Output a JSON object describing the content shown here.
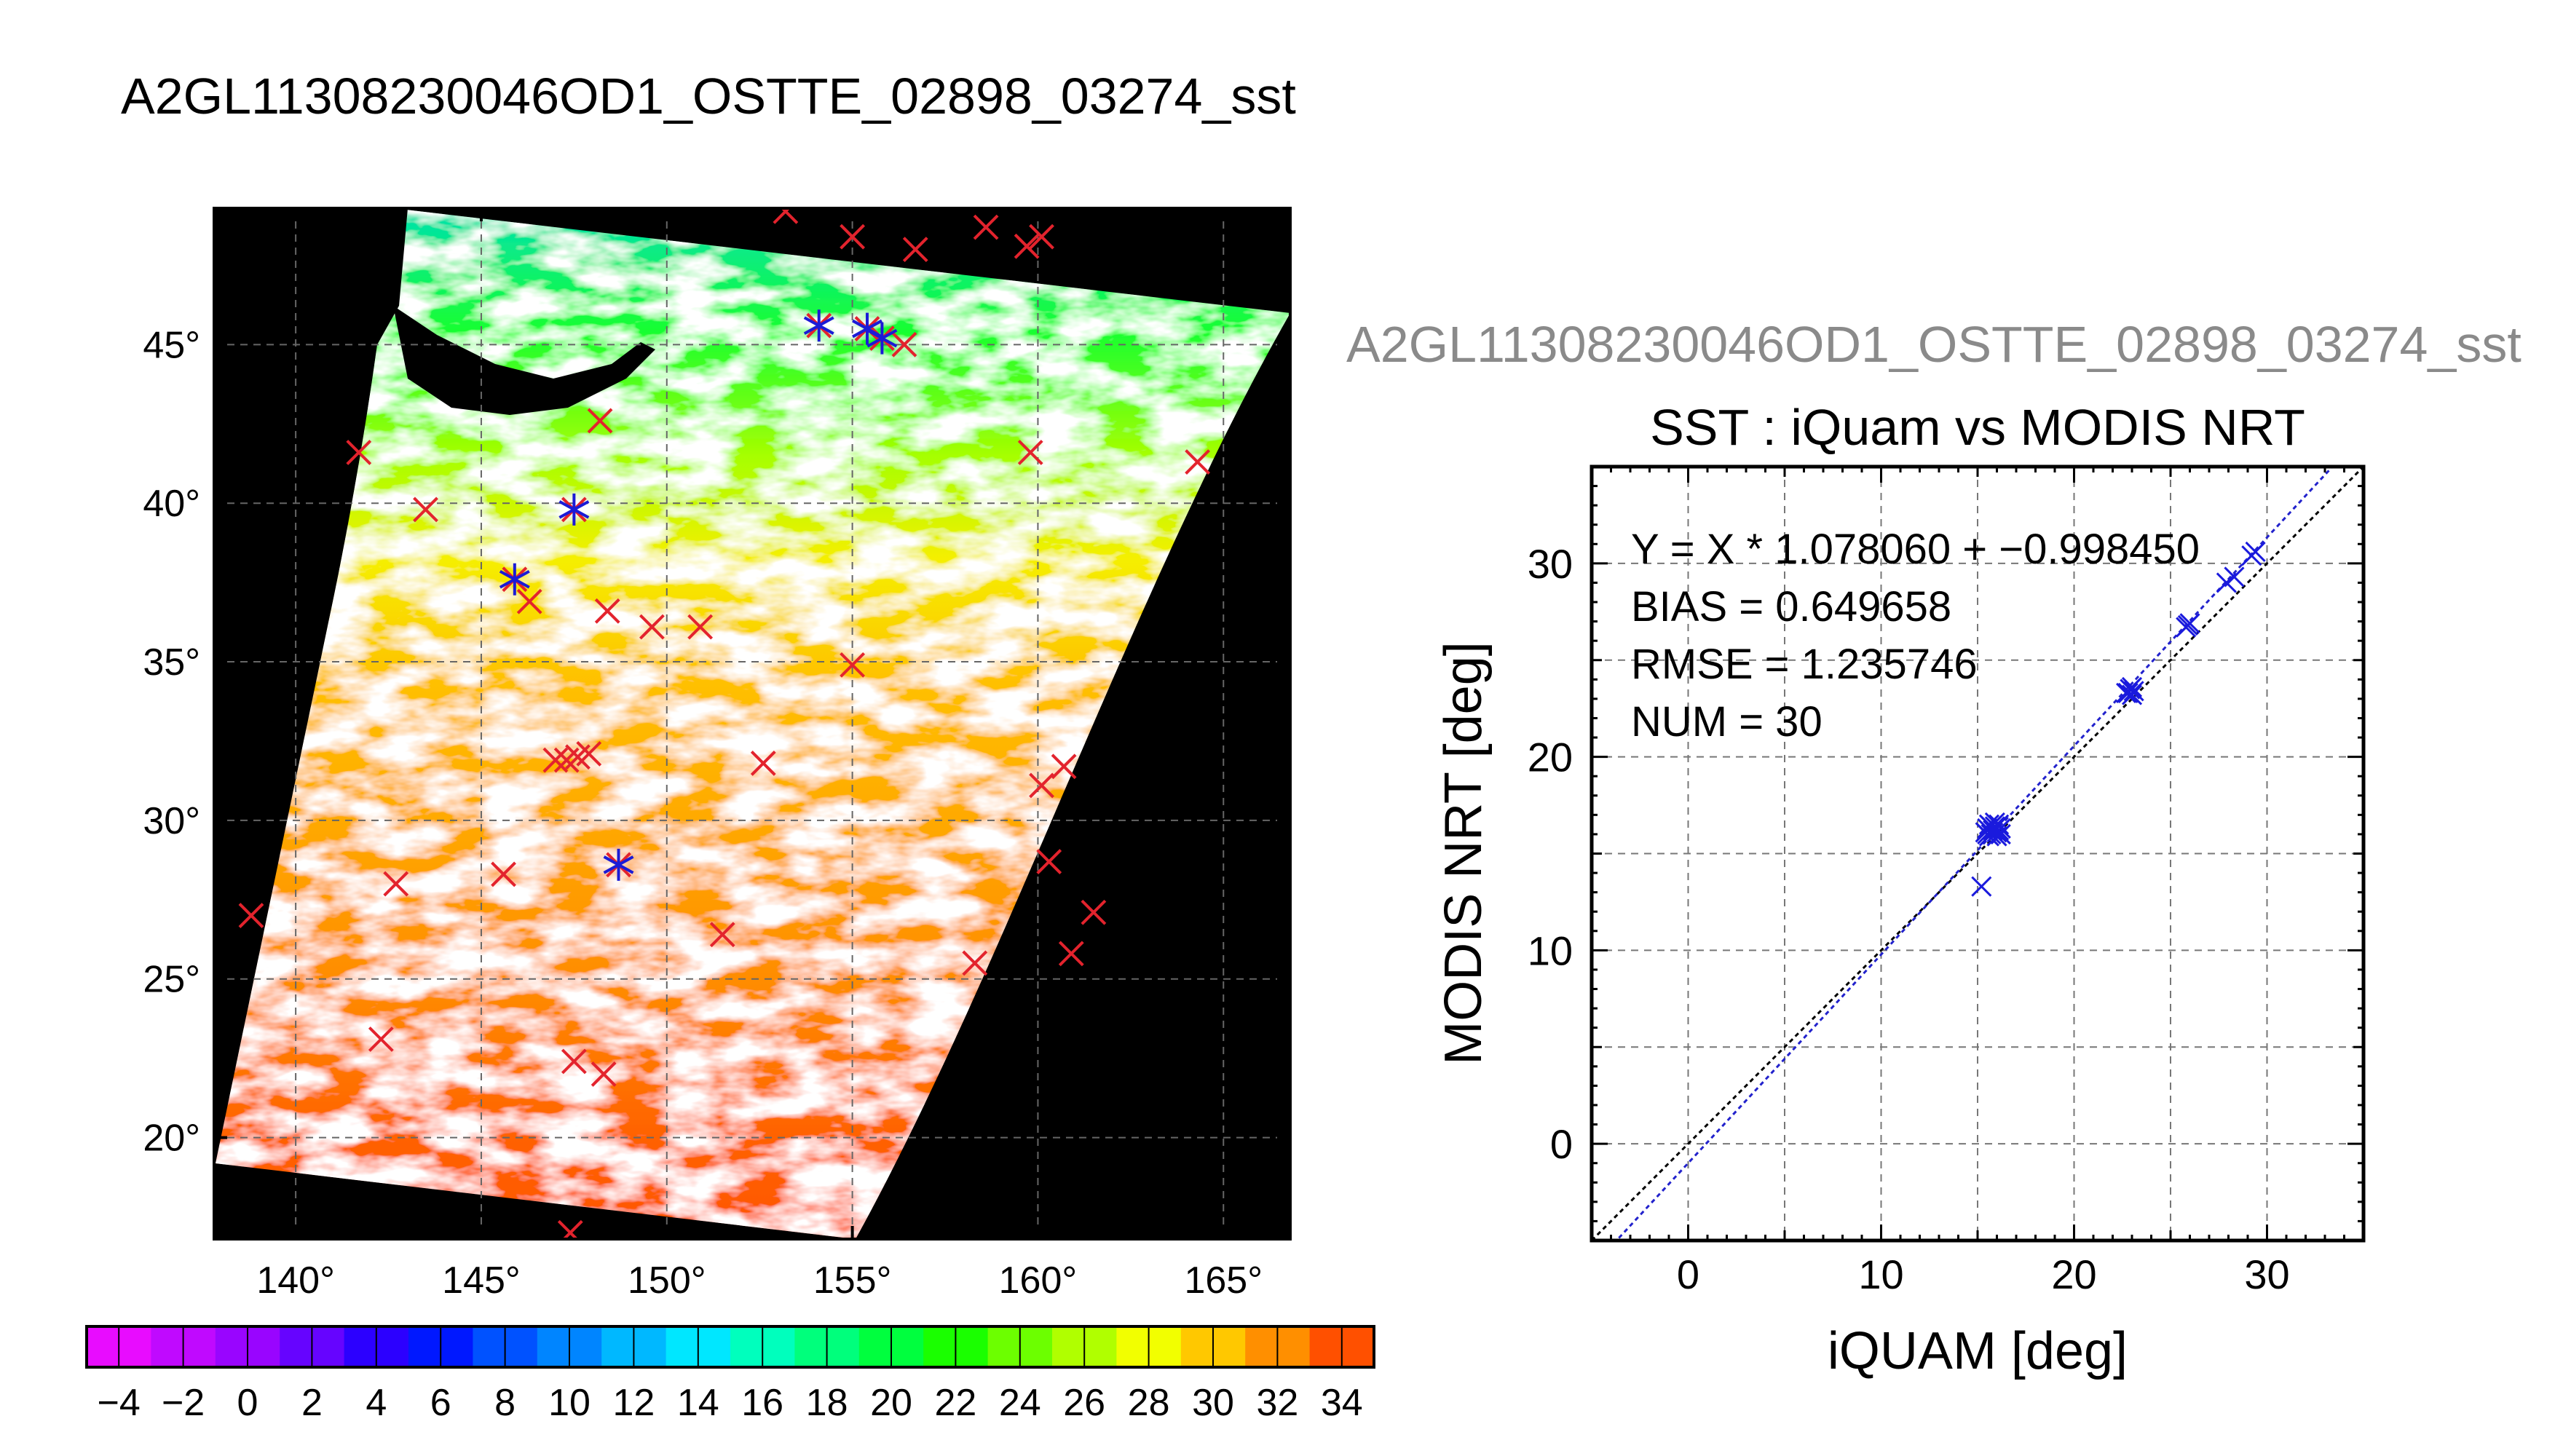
{
  "page_title": "A2GL11308230046OD1_OSTTE_02898_03274_sst",
  "chart_data": [
    {
      "type": "map",
      "lon_ticks": [
        "140°",
        "145°",
        "150°",
        "155°",
        "160°",
        "165°"
      ],
      "lon_values": [
        140,
        145,
        150,
        155,
        160,
        165
      ],
      "lat_ticks": [
        "45°",
        "40°",
        "35°",
        "30°",
        "25°",
        "20°"
      ],
      "lat_values": [
        45,
        40,
        35,
        30,
        25,
        20
      ],
      "xlim": [
        137.8,
        166.8
      ],
      "ylim": [
        16.8,
        49.3
      ],
      "grid": true,
      "marker_colors": {
        "sst_match": "#e3232d",
        "used_match": "#1b1bd6"
      },
      "sst_markers": [
        [
          153.2,
          49.2
        ],
        [
          155.0,
          48.4
        ],
        [
          156.7,
          48.0
        ],
        [
          158.6,
          48.7
        ],
        [
          159.7,
          48.1
        ],
        [
          160.1,
          48.4
        ],
        [
          154.1,
          45.6
        ],
        [
          155.4,
          45.5
        ],
        [
          155.8,
          45.2
        ],
        [
          156.4,
          45.0
        ],
        [
          141.7,
          41.6
        ],
        [
          143.5,
          39.8
        ],
        [
          148.2,
          42.6
        ],
        [
          145.9,
          37.6
        ],
        [
          146.3,
          36.9
        ],
        [
          147.5,
          39.8
        ],
        [
          148.4,
          36.6
        ],
        [
          149.6,
          36.1
        ],
        [
          150.9,
          36.1
        ],
        [
          155.0,
          34.9
        ],
        [
          159.8,
          41.6
        ],
        [
          164.3,
          41.3
        ],
        [
          147.0,
          31.9
        ],
        [
          147.3,
          31.9
        ],
        [
          147.6,
          32.0
        ],
        [
          147.9,
          32.1
        ],
        [
          152.6,
          31.8
        ],
        [
          148.7,
          28.6
        ],
        [
          142.7,
          28.0
        ],
        [
          145.6,
          28.3
        ],
        [
          151.5,
          26.4
        ],
        [
          138.8,
          27.0
        ],
        [
          142.3,
          23.1
        ],
        [
          147.5,
          22.4
        ],
        [
          148.3,
          22.0
        ],
        [
          147.4,
          17.0
        ],
        [
          160.1,
          31.1
        ],
        [
          160.7,
          31.7
        ],
        [
          160.3,
          28.7
        ],
        [
          161.5,
          27.1
        ],
        [
          160.9,
          25.8
        ],
        [
          158.3,
          25.5
        ]
      ],
      "used_markers": [
        [
          154.1,
          45.6
        ],
        [
          155.4,
          45.5
        ],
        [
          155.8,
          45.2
        ],
        [
          147.5,
          39.8
        ],
        [
          145.9,
          37.6
        ],
        [
          148.7,
          28.6
        ]
      ]
    },
    {
      "type": "colorbar",
      "min": -5,
      "max": 35,
      "step": 2,
      "tick_labels": [
        "−4",
        "−2",
        "0",
        "2",
        "4",
        "6",
        "8",
        "10",
        "12",
        "14",
        "16",
        "18",
        "20",
        "22",
        "24",
        "26",
        "28",
        "30",
        "32",
        "34"
      ],
      "colors": [
        "#e80cff",
        "#c009ff",
        "#9905ff",
        "#6604ff",
        "#2c00ff",
        "#0018ff",
        "#0052ff",
        "#0085ff",
        "#00b8ff",
        "#00e7ff",
        "#00ffbd",
        "#00ff7c",
        "#00ff3e",
        "#1aff00",
        "#6cff00",
        "#b0ff00",
        "#f2ff00",
        "#ffc800",
        "#ff8f00",
        "#ff5000",
        "#ff0d00"
      ]
    },
    {
      "type": "scatter",
      "header": "A2GL11308230046OD1_OSTTE_02898_03274_sst",
      "title": "SST : iQuam vs MODIS NRT",
      "xlabel": "iQUAM [deg]",
      "ylabel": "MODIS NRT [deg]",
      "xlim": [
        -5,
        35
      ],
      "ylim": [
        -5,
        35
      ],
      "x_tick_labels": [
        "0",
        "10",
        "20",
        "30"
      ],
      "y_tick_labels": [
        "0",
        "10",
        "20",
        "30"
      ],
      "grid": true,
      "stats": {
        "equation": "Y = X * 1.078060 + −0.998450",
        "bias": "BIAS = 0.649658",
        "rmse": "RMSE = 1.235746",
        "num": "NUM = 30"
      },
      "fit": {
        "slope": 1.07806,
        "intercept": -0.99845,
        "color": "#2222cc"
      },
      "identity": {
        "slope": 1,
        "intercept": 0,
        "color": "#000000"
      },
      "point_color": "#1a1add",
      "points": [
        [
          15.2,
          13.3
        ],
        [
          15.4,
          16.1
        ],
        [
          15.5,
          16.3
        ],
        [
          15.6,
          15.9
        ],
        [
          15.7,
          16.0
        ],
        [
          15.8,
          16.2
        ],
        [
          15.9,
          16.4
        ],
        [
          16.0,
          16.1
        ],
        [
          16.1,
          16.5
        ],
        [
          16.2,
          16.3
        ],
        [
          15.6,
          16.5
        ],
        [
          16.0,
          15.9
        ],
        [
          15.5,
          16.0
        ],
        [
          16.2,
          16.0
        ],
        [
          15.9,
          16.6
        ],
        [
          22.8,
          23.3
        ],
        [
          22.9,
          23.5
        ],
        [
          23.0,
          23.2
        ],
        [
          23.1,
          23.4
        ],
        [
          22.7,
          23.3
        ],
        [
          25.8,
          26.7
        ],
        [
          26.0,
          26.9
        ],
        [
          25.9,
          26.8
        ],
        [
          27.9,
          29.0
        ],
        [
          28.3,
          29.3
        ],
        [
          29.2,
          30.4
        ],
        [
          29.4,
          30.6
        ],
        [
          23.0,
          23.6
        ],
        [
          16.1,
          16.2
        ],
        [
          15.7,
          16.4
        ]
      ]
    }
  ]
}
